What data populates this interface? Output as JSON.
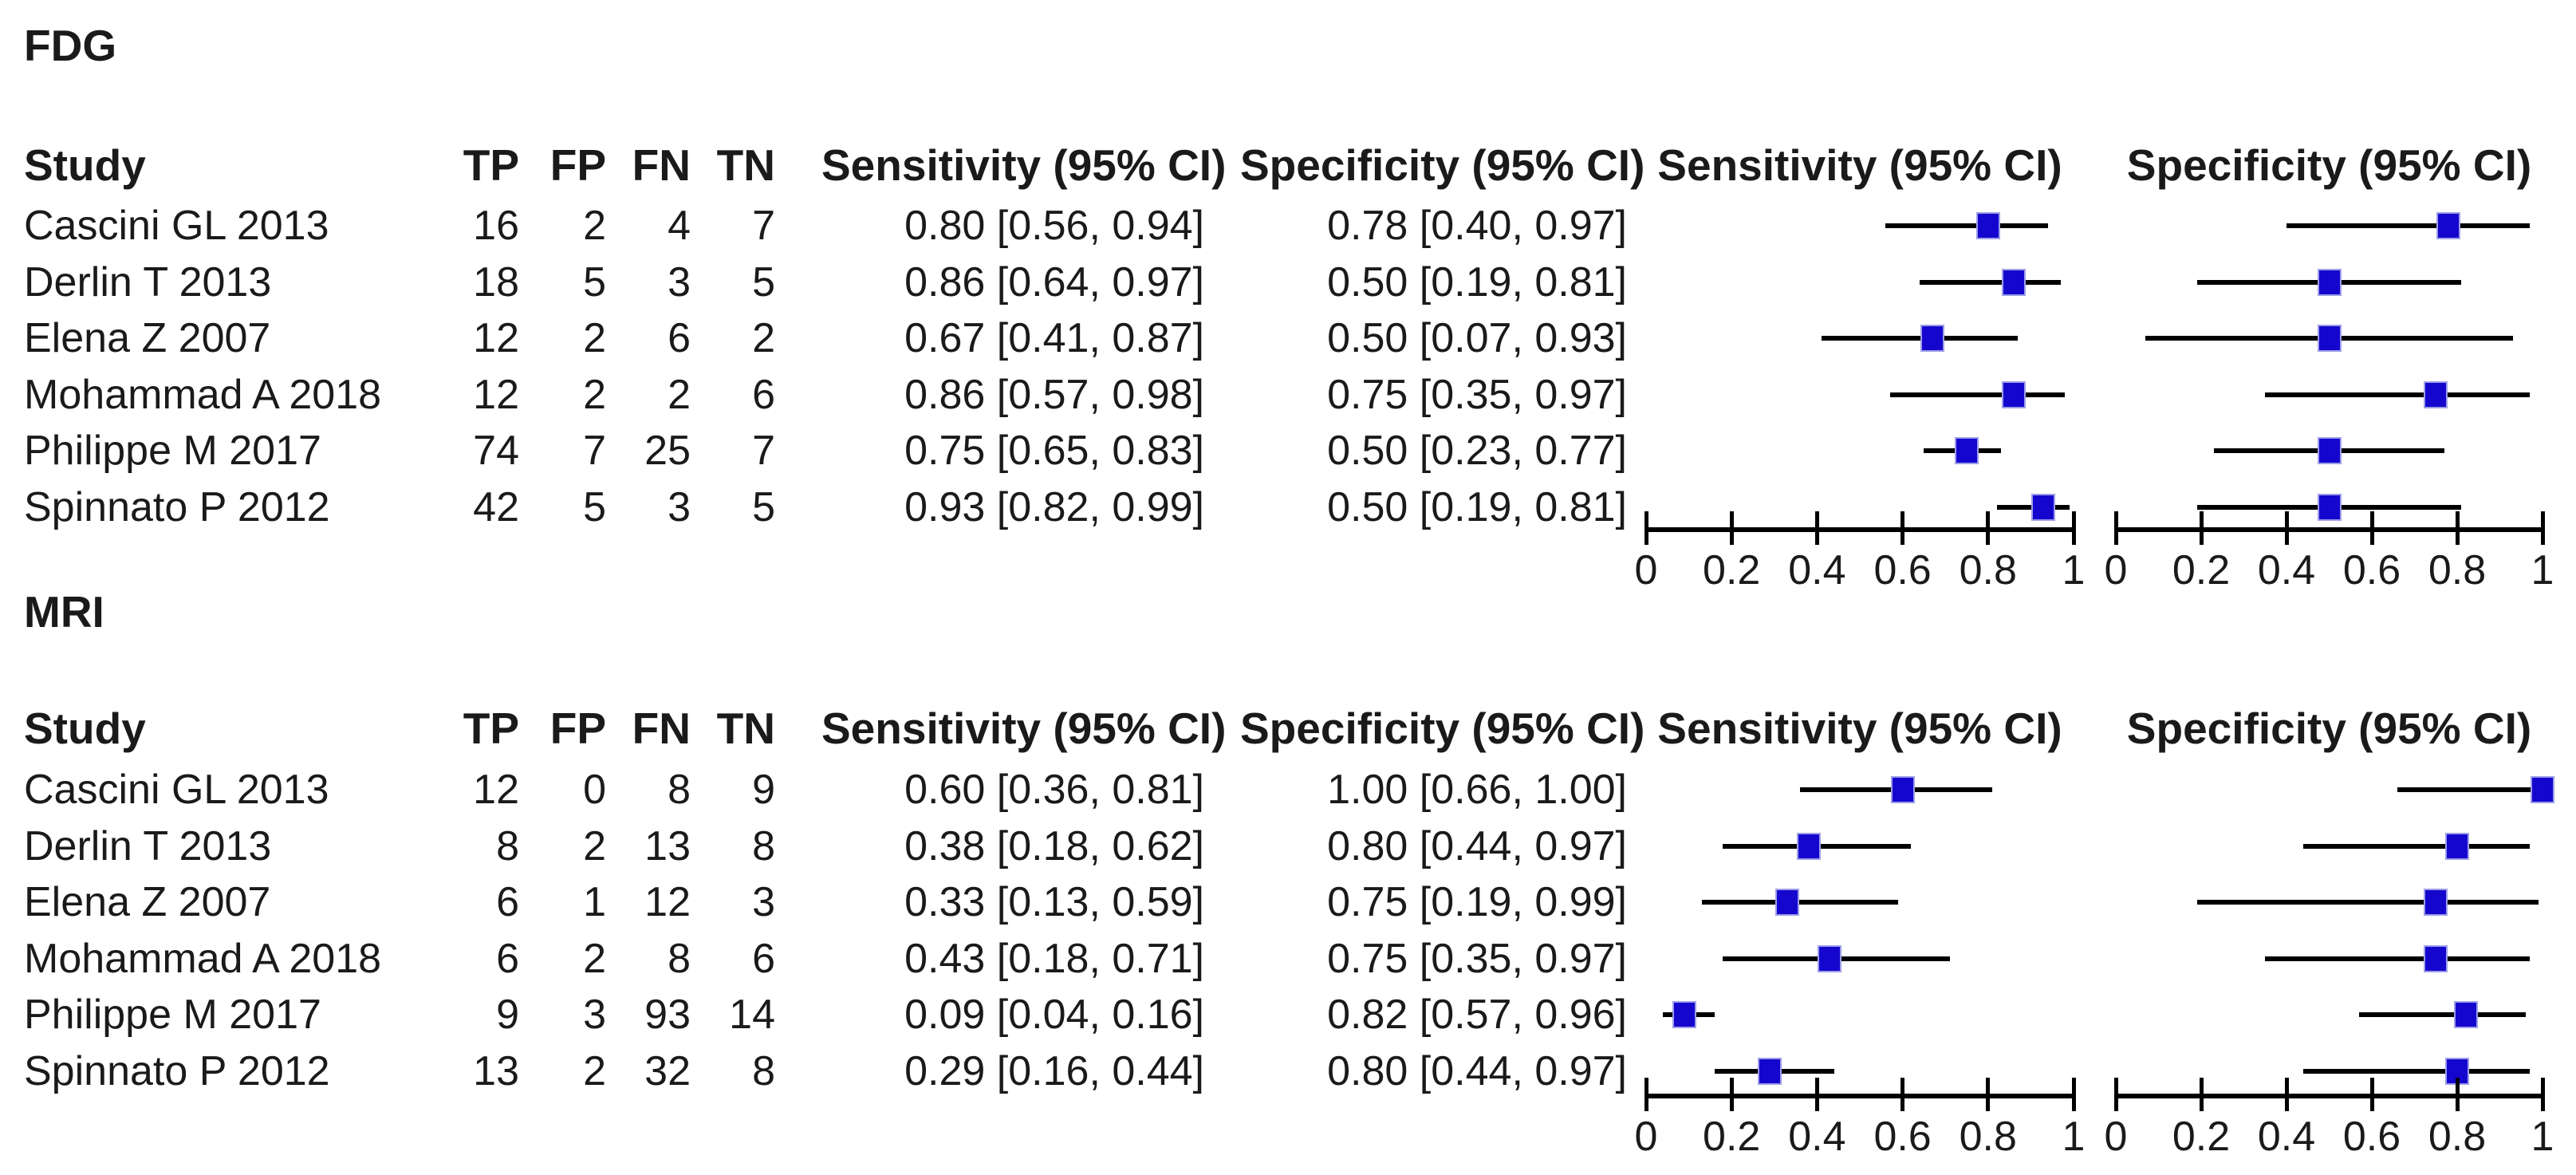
{
  "headers": {
    "study": "Study",
    "tp": "TP",
    "fp": "FP",
    "fn": "FN",
    "tn": "TN",
    "sensitivity": "Sensitivity (95% CI)",
    "specificity": "Specificity (95% CI)",
    "plot_sensitivity": "Sensitivity (95% CI)",
    "plot_specificity": "Specificity (95% CI)"
  },
  "axis_tick_labels": [
    "0",
    "0.2",
    "0.4",
    "0.6",
    "0.8",
    "1"
  ],
  "colors": {
    "marker_fill": "#1506CE",
    "marker_border": "#9E9EE8",
    "line": "#000000",
    "text": "#1A1A1A",
    "background": "#FFFFFF"
  },
  "chart_data": [
    {
      "type": "forest",
      "group": "FDG",
      "axis": {
        "range": [
          0,
          1
        ],
        "ticks": [
          0,
          0.2,
          0.4,
          0.6,
          0.8,
          1
        ]
      },
      "studies": [
        {
          "study": "Cascini GL 2013",
          "TP": 16,
          "FP": 2,
          "FN": 4,
          "TN": 7,
          "sensitivity": 0.8,
          "sensitivity_ci": [
            0.56,
            0.94
          ],
          "sensitivity_label": "0.80 [0.56, 0.94]",
          "specificity": 0.78,
          "specificity_ci": [
            0.4,
            0.97
          ],
          "specificity_label": "0.78 [0.40, 0.97]"
        },
        {
          "study": "Derlin T 2013",
          "TP": 18,
          "FP": 5,
          "FN": 3,
          "TN": 5,
          "sensitivity": 0.86,
          "sensitivity_ci": [
            0.64,
            0.97
          ],
          "sensitivity_label": "0.86 [0.64, 0.97]",
          "specificity": 0.5,
          "specificity_ci": [
            0.19,
            0.81
          ],
          "specificity_label": "0.50 [0.19, 0.81]"
        },
        {
          "study": "Elena Z 2007",
          "TP": 12,
          "FP": 2,
          "FN": 6,
          "TN": 2,
          "sensitivity": 0.67,
          "sensitivity_ci": [
            0.41,
            0.87
          ],
          "sensitivity_label": "0.67 [0.41, 0.87]",
          "specificity": 0.5,
          "specificity_ci": [
            0.07,
            0.93
          ],
          "specificity_label": "0.50 [0.07, 0.93]"
        },
        {
          "study": "Mohammad A 2018",
          "TP": 12,
          "FP": 2,
          "FN": 2,
          "TN": 6,
          "sensitivity": 0.86,
          "sensitivity_ci": [
            0.57,
            0.98
          ],
          "sensitivity_label": "0.86 [0.57, 0.98]",
          "specificity": 0.75,
          "specificity_ci": [
            0.35,
            0.97
          ],
          "specificity_label": "0.75 [0.35, 0.97]"
        },
        {
          "study": "Philippe M 2017",
          "TP": 74,
          "FP": 7,
          "FN": 25,
          "TN": 7,
          "sensitivity": 0.75,
          "sensitivity_ci": [
            0.65,
            0.83
          ],
          "sensitivity_label": "0.75 [0.65, 0.83]",
          "specificity": 0.5,
          "specificity_ci": [
            0.23,
            0.77
          ],
          "specificity_label": "0.50 [0.23, 0.77]"
        },
        {
          "study": "Spinnato P 2012",
          "TP": 42,
          "FP": 5,
          "FN": 3,
          "TN": 5,
          "sensitivity": 0.93,
          "sensitivity_ci": [
            0.82,
            0.99
          ],
          "sensitivity_label": "0.93 [0.82, 0.99]",
          "specificity": 0.5,
          "specificity_ci": [
            0.19,
            0.81
          ],
          "specificity_label": "0.50 [0.19, 0.81]"
        }
      ]
    },
    {
      "type": "forest",
      "group": "MRI",
      "axis": {
        "range": [
          0,
          1
        ],
        "ticks": [
          0,
          0.2,
          0.4,
          0.6,
          0.8,
          1
        ]
      },
      "studies": [
        {
          "study": "Cascini GL 2013",
          "TP": 12,
          "FP": 0,
          "FN": 8,
          "TN": 9,
          "sensitivity": 0.6,
          "sensitivity_ci": [
            0.36,
            0.81
          ],
          "sensitivity_label": "0.60 [0.36, 0.81]",
          "specificity": 1.0,
          "specificity_ci": [
            0.66,
            1.0
          ],
          "specificity_label": "1.00 [0.66, 1.00]"
        },
        {
          "study": "Derlin T 2013",
          "TP": 8,
          "FP": 2,
          "FN": 13,
          "TN": 8,
          "sensitivity": 0.38,
          "sensitivity_ci": [
            0.18,
            0.62
          ],
          "sensitivity_label": "0.38 [0.18, 0.62]",
          "specificity": 0.8,
          "specificity_ci": [
            0.44,
            0.97
          ],
          "specificity_label": "0.80 [0.44, 0.97]"
        },
        {
          "study": "Elena Z 2007",
          "TP": 6,
          "FP": 1,
          "FN": 12,
          "TN": 3,
          "sensitivity": 0.33,
          "sensitivity_ci": [
            0.13,
            0.59
          ],
          "sensitivity_label": "0.33 [0.13, 0.59]",
          "specificity": 0.75,
          "specificity_ci": [
            0.19,
            0.99
          ],
          "specificity_label": "0.75 [0.19, 0.99]"
        },
        {
          "study": "Mohammad A 2018",
          "TP": 6,
          "FP": 2,
          "FN": 8,
          "TN": 6,
          "sensitivity": 0.43,
          "sensitivity_ci": [
            0.18,
            0.71
          ],
          "sensitivity_label": "0.43 [0.18, 0.71]",
          "specificity": 0.75,
          "specificity_ci": [
            0.35,
            0.97
          ],
          "specificity_label": "0.75 [0.35, 0.97]"
        },
        {
          "study": "Philippe M 2017",
          "TP": 9,
          "FP": 3,
          "FN": 93,
          "TN": 14,
          "sensitivity": 0.09,
          "sensitivity_ci": [
            0.04,
            0.16
          ],
          "sensitivity_label": "0.09 [0.04, 0.16]",
          "specificity": 0.82,
          "specificity_ci": [
            0.57,
            0.96
          ],
          "specificity_label": "0.82 [0.57, 0.96]"
        },
        {
          "study": "Spinnato P 2012",
          "TP": 13,
          "FP": 2,
          "FN": 32,
          "TN": 8,
          "sensitivity": 0.29,
          "sensitivity_ci": [
            0.16,
            0.44
          ],
          "sensitivity_label": "0.29 [0.16, 0.44]",
          "specificity": 0.8,
          "specificity_ci": [
            0.44,
            0.97
          ],
          "specificity_label": "0.80 [0.44, 0.97]"
        }
      ]
    }
  ]
}
